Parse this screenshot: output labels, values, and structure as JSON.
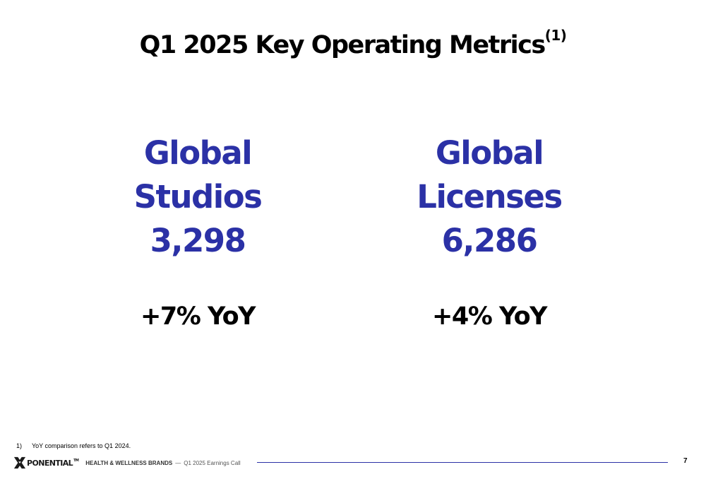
{
  "title": {
    "text": "Q1 2025 Key Operating Metrics",
    "superscript": "(1)"
  },
  "metrics": [
    {
      "line1": "Global",
      "line2": "Studios",
      "value": "3,298",
      "yoy": "+7% YoY"
    },
    {
      "line1": "Global",
      "line2": "Licenses",
      "value": "6,286",
      "yoy": "+4% YoY"
    }
  ],
  "footnote": {
    "number": "1)",
    "text": "YoY comparison refers to Q1 2024."
  },
  "footer": {
    "logo_text": "PONENTIAL",
    "logo_tm": "TM",
    "brand_text": "HEALTH & WELLNESS BRANDS",
    "separator": "—",
    "call_text": "Q1 2025 Earnings Call",
    "page_number": "7"
  },
  "colors": {
    "accent": "#2b31a6",
    "text": "#000000"
  }
}
